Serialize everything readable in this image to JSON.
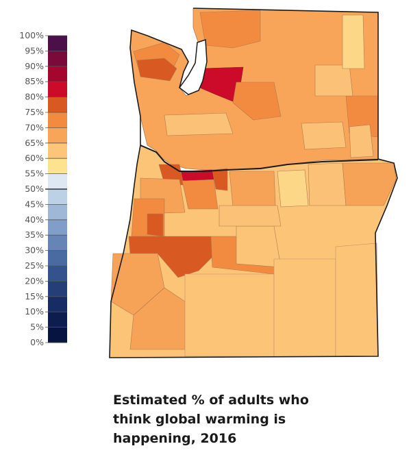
{
  "legend": {
    "labels": [
      "100%",
      "95%",
      "90%",
      "85%",
      "80%",
      "75%",
      "70%",
      "65%",
      "60%",
      "55%",
      "50%",
      "45%",
      "40%",
      "35%",
      "30%",
      "25%",
      "20%",
      "15%",
      "10%",
      "5%",
      "0%"
    ],
    "colors": [
      "#4b0f4a",
      "#7a0a3a",
      "#a3072e",
      "#cc0a2a",
      "#d85a22",
      "#f28a40",
      "#f8a55a",
      "#fdc579",
      "#fde290",
      "#dde8f3",
      "#bcd0e6",
      "#9fb8d8",
      "#819ec8",
      "#6485b6",
      "#4a6ba2",
      "#34538d",
      "#243e77",
      "#172c62",
      "#0d1d4d",
      "#081440"
    ]
  },
  "map": {
    "region_colors": {
      "upper_third": "#f8a55a",
      "mid": "#f6a257",
      "light": "#fbc176",
      "lightest": "#fdd788",
      "dark_orange": "#d85a22",
      "red": "#cc0a2a",
      "eastern_oregon": "#fbc477"
    }
  },
  "caption": {
    "line1": "Estimated % of adults who",
    "line2": "think global warming is",
    "line3": "happening, 2016"
  }
}
